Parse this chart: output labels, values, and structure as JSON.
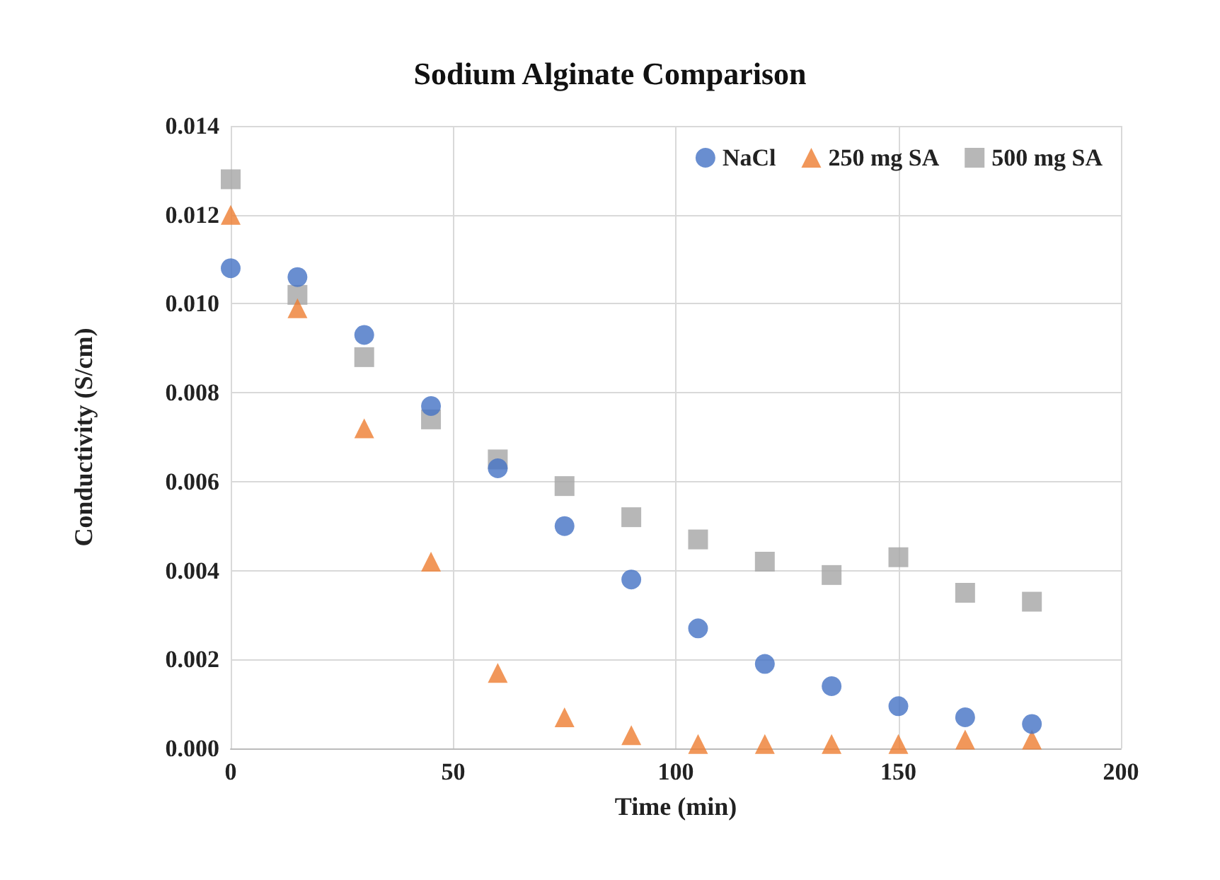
{
  "chart_data": {
    "type": "scatter",
    "title": "Sodium Alginate Comparison",
    "xlabel": "Time (min)",
    "ylabel": "Conductivity (S/cm)",
    "x": [
      0,
      15,
      30,
      45,
      60,
      75,
      90,
      105,
      120,
      135,
      150,
      165,
      180
    ],
    "series": [
      {
        "name": "NaCl",
        "color": "#4472c4",
        "marker": "circle",
        "values": [
          0.0108,
          0.0106,
          0.0093,
          0.0077,
          0.0063,
          0.005,
          0.0038,
          0.0027,
          0.0019,
          0.0014,
          0.00095,
          0.0007,
          0.00055
        ]
      },
      {
        "name": "250 mg SA",
        "color": "#ed7d31",
        "marker": "triangle",
        "values": [
          0.012,
          0.0099,
          0.0072,
          0.0042,
          0.0017,
          0.0007,
          0.0003,
          0.0001,
          0.0001,
          0.0001,
          0.0001,
          0.0002,
          0.0002
        ]
      },
      {
        "name": "500 mg SA",
        "color": "#a5a5a5",
        "marker": "square",
        "values": [
          0.0128,
          0.0102,
          0.0088,
          0.0074,
          0.0065,
          0.0059,
          0.0052,
          0.0047,
          0.0042,
          0.0039,
          0.0043,
          0.0035,
          0.0033
        ]
      }
    ],
    "xlim": [
      0,
      200
    ],
    "xticks": [
      0,
      50,
      100,
      150,
      200
    ],
    "ylim": [
      0,
      0.014
    ],
    "yticks": [
      {
        "value": 0,
        "label": "0.000"
      },
      {
        "value": 0.002,
        "label": "0.002"
      },
      {
        "value": 0.004,
        "label": "0.004"
      },
      {
        "value": 0.006,
        "label": "0.006"
      },
      {
        "value": 0.008,
        "label": "0.008"
      },
      {
        "value": 0.01,
        "label": "0.010"
      },
      {
        "value": 0.012,
        "label": "0.012"
      },
      {
        "value": 0.014,
        "label": "0.014"
      }
    ],
    "grid": true,
    "legend": "top right"
  }
}
